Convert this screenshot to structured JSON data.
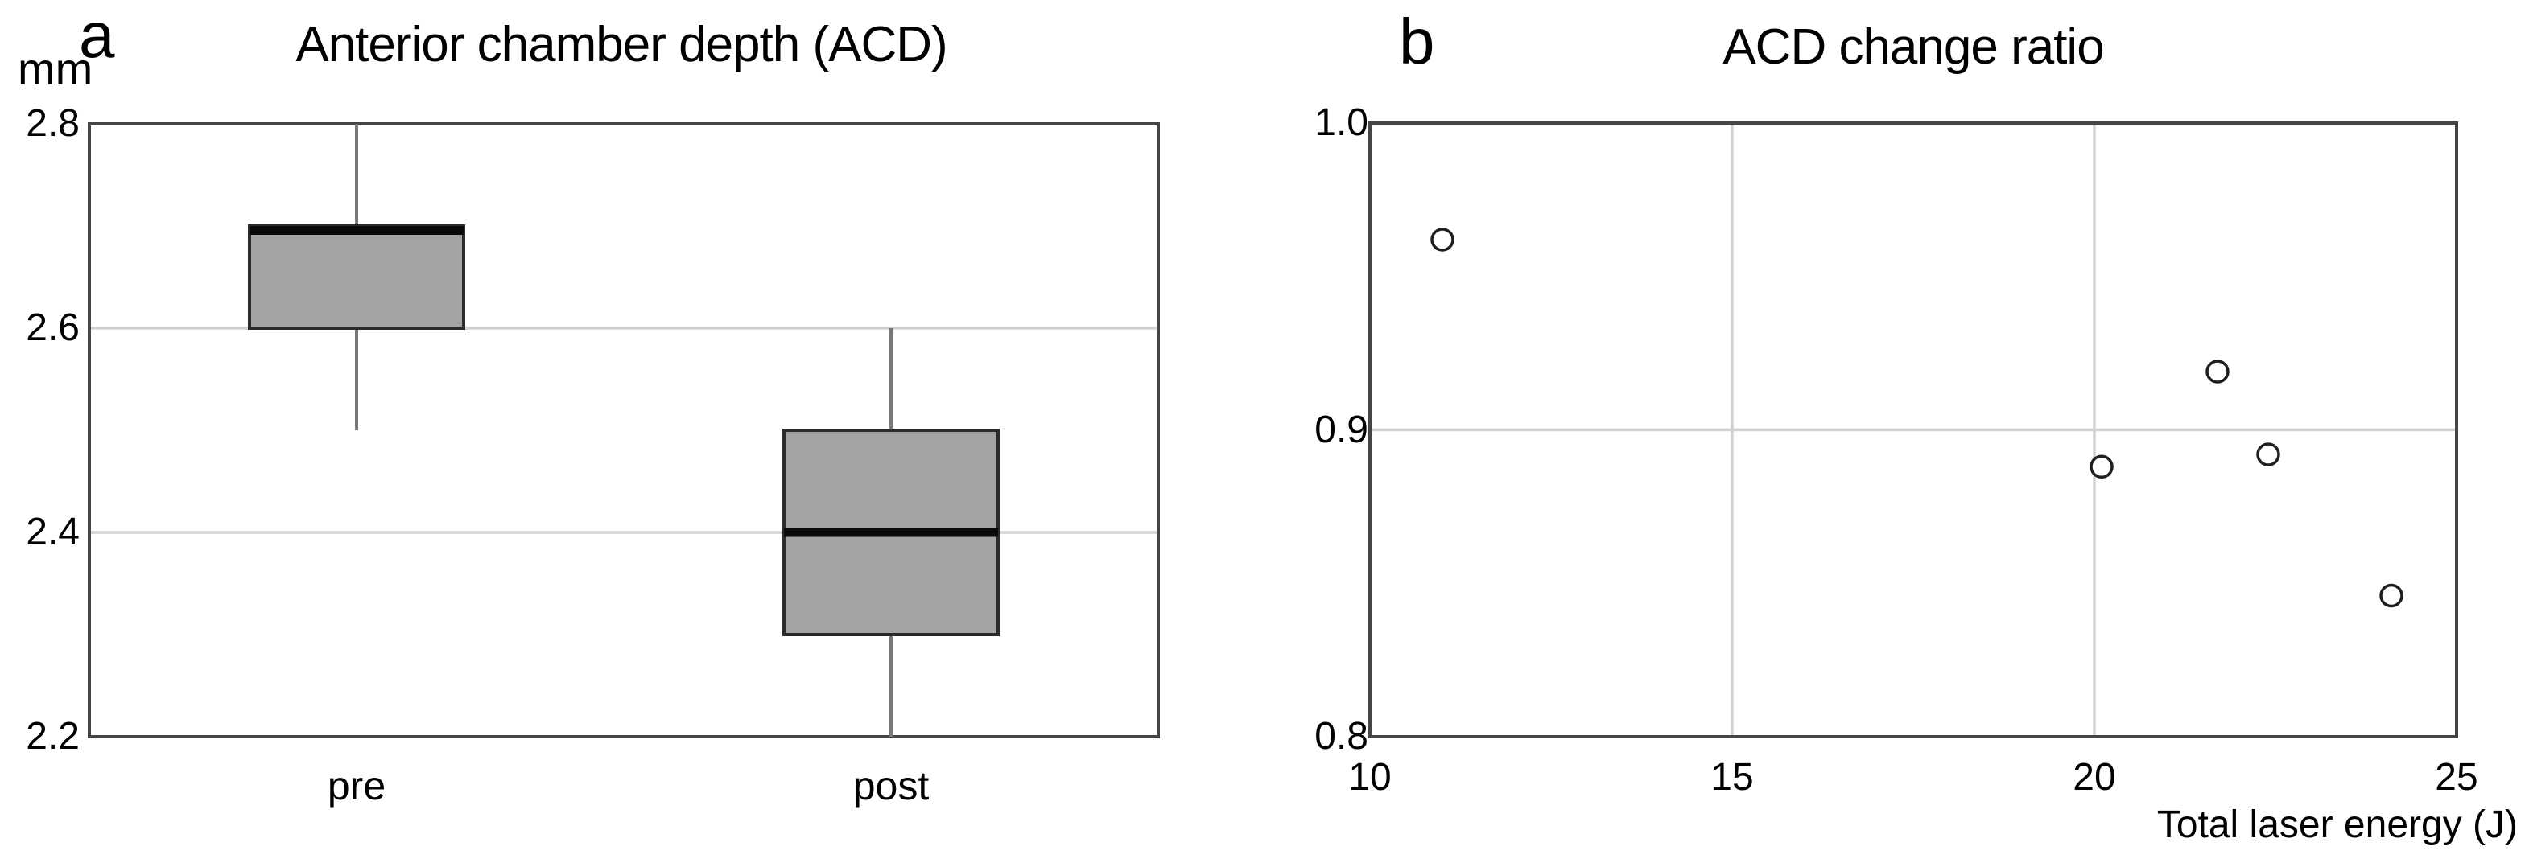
{
  "figure_caption_letters": [
    "a",
    "b"
  ],
  "colors": {
    "background": "#ffffff",
    "frame": "#454545",
    "grid": "#d2d2d2",
    "box_fill": "#a6a4a3",
    "box_border": "#2b2b2b",
    "median": "#0a0a0a",
    "whisker": "#787878",
    "point_stroke": "#1f1f1f",
    "point_fill": "#ffffff",
    "text": "#000000"
  },
  "chart_data": [
    {
      "type": "box",
      "panel": "a",
      "title": "Anterior chamber depth (ACD)",
      "y_unit": "mm",
      "categories": [
        "pre",
        "post"
      ],
      "ylim": [
        2.2,
        2.8
      ],
      "yticks": [
        {
          "value": 2.8,
          "label": "2.8"
        },
        {
          "value": 2.6,
          "label": "2.6"
        },
        {
          "value": 2.4,
          "label": "2.4"
        },
        {
          "value": 2.2,
          "label": "2.2"
        }
      ],
      "grid_y": [
        2.6,
        2.4
      ],
      "legend": "none",
      "boxes": [
        {
          "category": "pre",
          "whisker_low": 2.5,
          "q1": 2.6,
          "median": 2.7,
          "q3": 2.7,
          "whisker_high": 2.8
        },
        {
          "category": "post",
          "whisker_low": 2.2,
          "q1": 2.3,
          "median": 2.4,
          "q3": 2.5,
          "whisker_high": 2.6
        }
      ]
    },
    {
      "type": "scatter",
      "panel": "b",
      "title": "ACD change ratio",
      "xlabel": "Total laser energy (J)",
      "marker": "open-circle",
      "xlim": [
        10,
        25
      ],
      "ylim": [
        0.8,
        1.0
      ],
      "xticks": [
        {
          "value": 10,
          "label": "10"
        },
        {
          "value": 15,
          "label": "15"
        },
        {
          "value": 20,
          "label": "20"
        },
        {
          "value": 25,
          "label": "25"
        }
      ],
      "yticks": [
        {
          "value": 1.0,
          "label": "1.0"
        },
        {
          "value": 0.9,
          "label": "0.9"
        },
        {
          "value": 0.8,
          "label": "0.8"
        }
      ],
      "grid_x": [
        15,
        20
      ],
      "grid_y": [
        0.9
      ],
      "legend": "none",
      "points": [
        {
          "x": 11.0,
          "y": 0.962
        },
        {
          "x": 20.1,
          "y": 0.888
        },
        {
          "x": 21.7,
          "y": 0.919
        },
        {
          "x": 22.4,
          "y": 0.892
        },
        {
          "x": 24.1,
          "y": 0.846
        }
      ]
    }
  ]
}
